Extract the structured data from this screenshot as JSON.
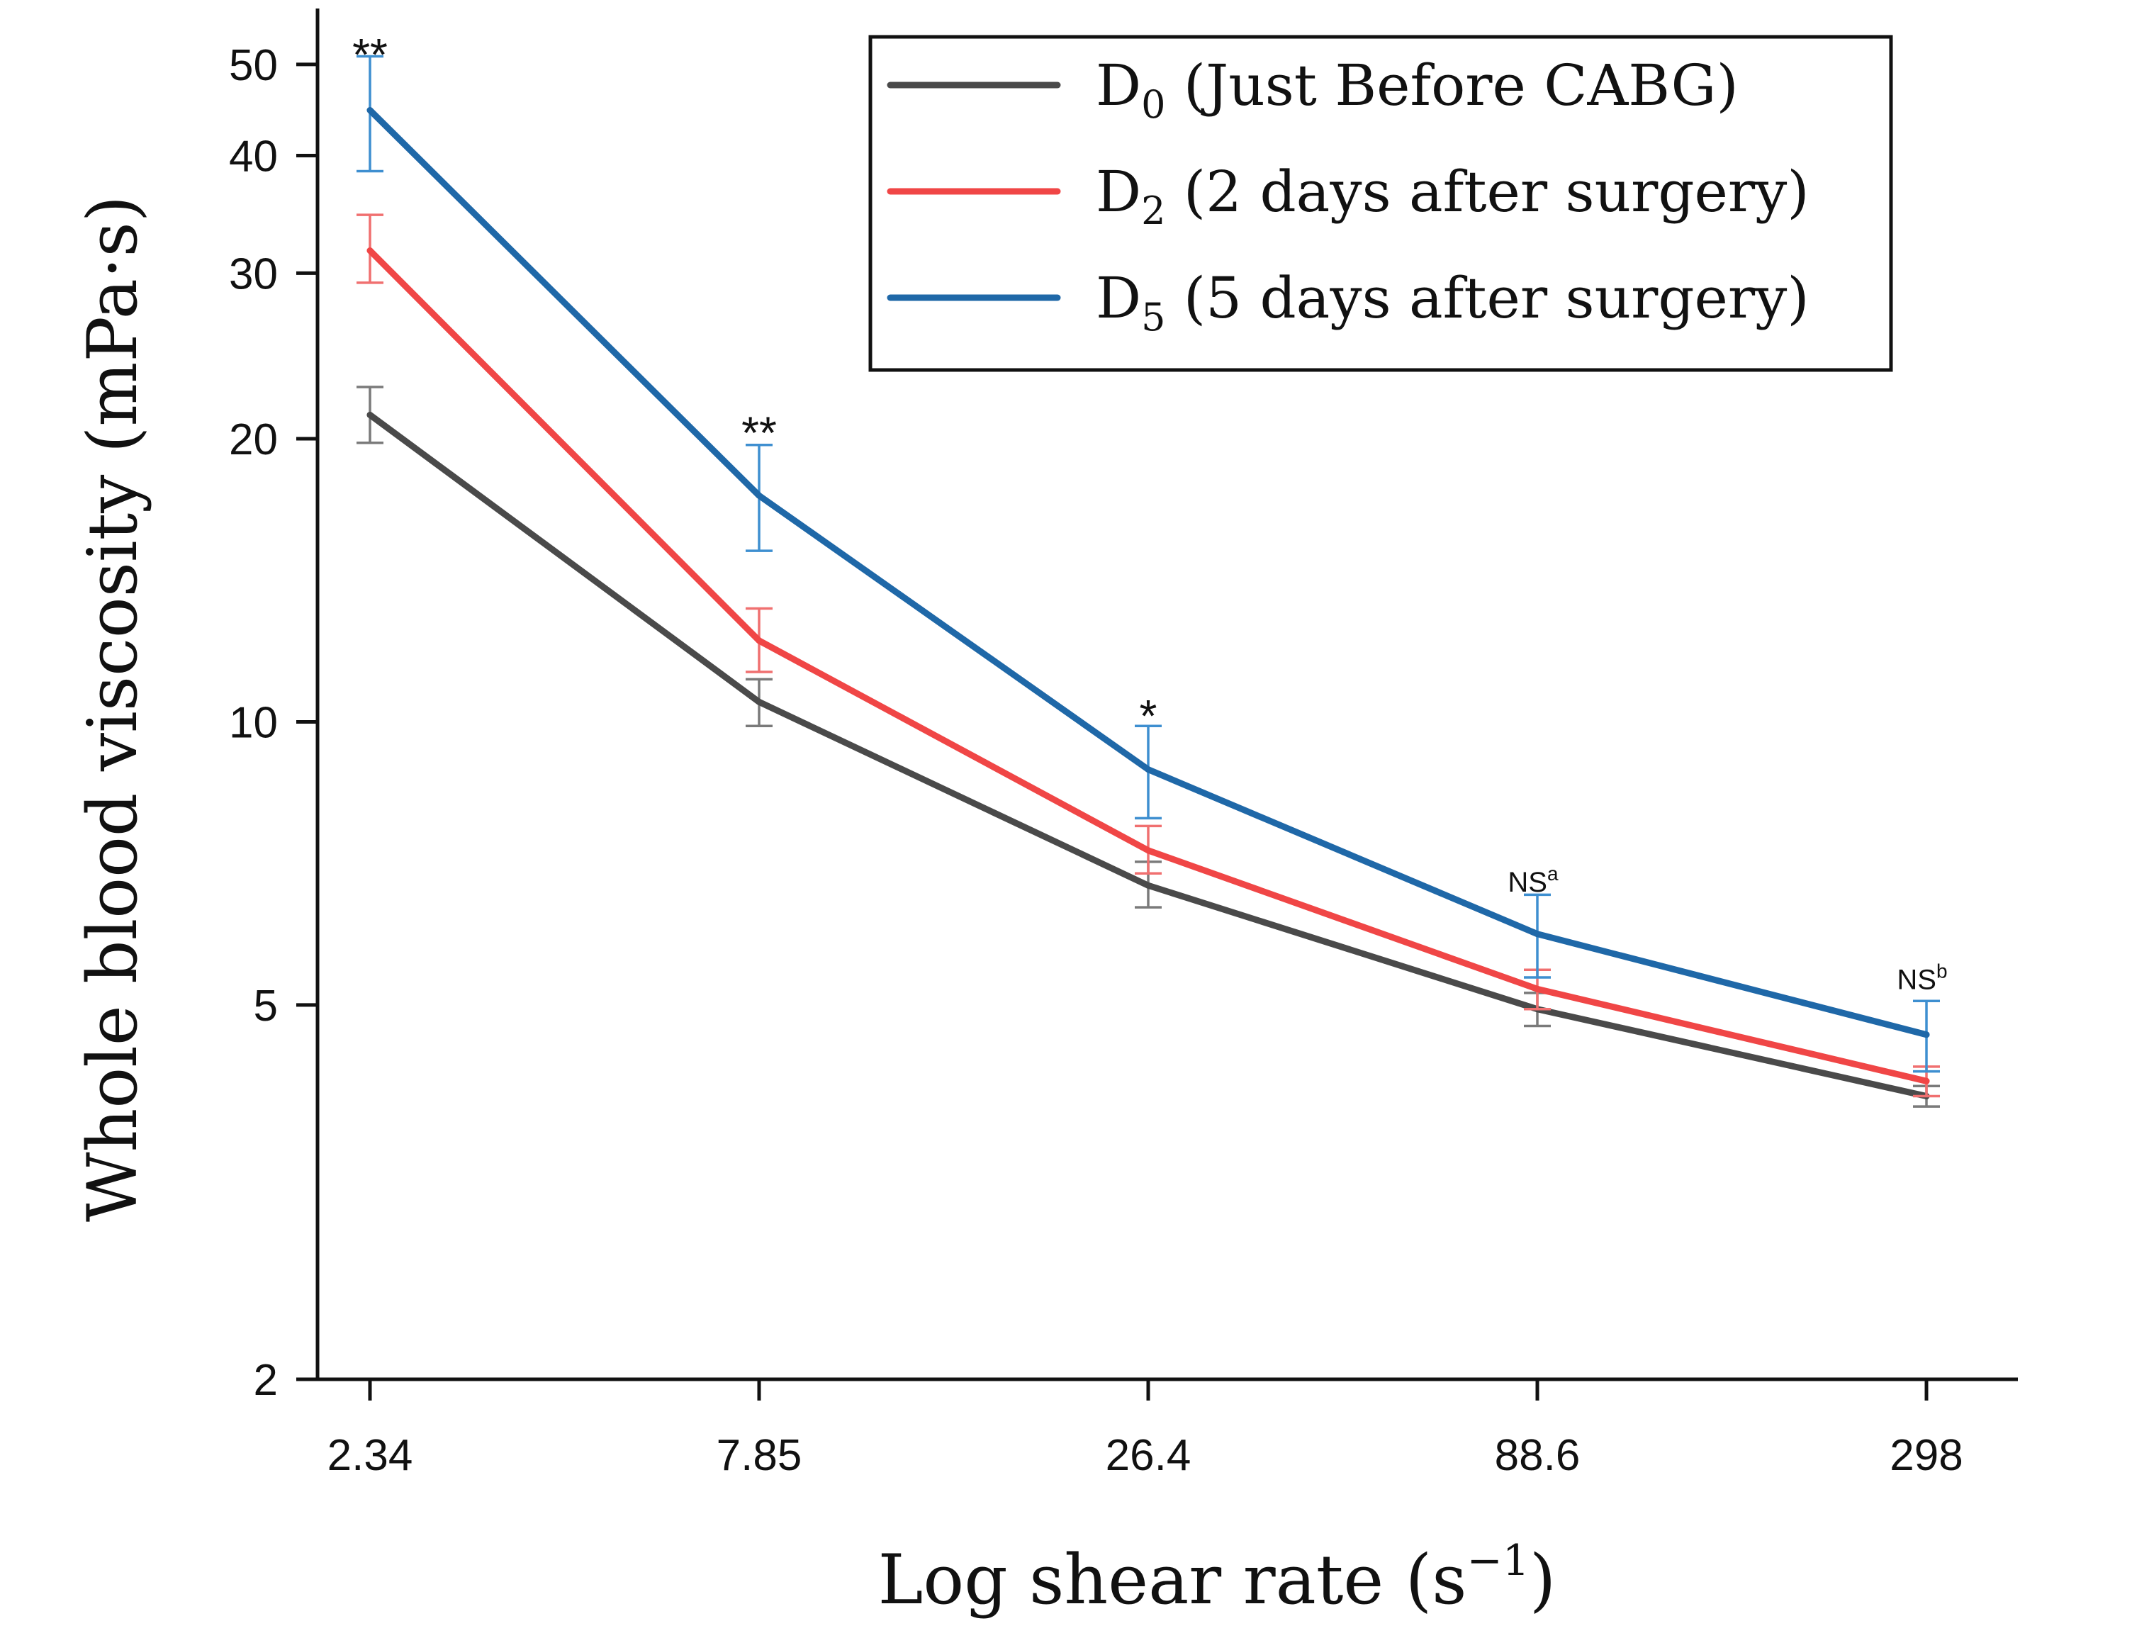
{
  "chart_data": {
    "type": "line",
    "title": "",
    "xlabel": {
      "text": "Log shear rate (s",
      "sup": "−1",
      "close": ")"
    },
    "ylabel": "Whole blood viscosity (mPa·s)",
    "yscale": "log",
    "ylim": [
      2,
      55
    ],
    "x": [
      "2.34",
      "7.85",
      "26.4",
      "88.6",
      "298"
    ],
    "yticks": [
      2,
      5,
      10,
      20,
      30,
      40,
      50
    ],
    "ytick_labels": [
      "2",
      "5",
      "10",
      "20",
      "30",
      "40",
      "50"
    ],
    "legend_position": "top-right",
    "series": [
      {
        "name": "D0 (Just Before CABG)",
        "legend_main": "D",
        "legend_sub": "0",
        "legend_rest": " (Just Before CABG)",
        "color": "#4a4a4a",
        "errcolor": "#7a7a7a",
        "values": [
          21.2,
          10.5,
          6.7,
          4.95,
          4.0
        ],
        "err_low": [
          1.4,
          0.6,
          0.35,
          0.2,
          0.1
        ],
        "err_high": [
          1.5,
          0.6,
          0.4,
          0.2,
          0.1
        ]
      },
      {
        "name": "D2 (2 days after surgery)",
        "legend_main": "D",
        "legend_sub": "2",
        "legend_rest": " (2 days after surgery)",
        "color": "#f04646",
        "errcolor": "#f07070",
        "values": [
          31.7,
          12.2,
          7.3,
          5.2,
          4.15
        ],
        "err_low": [
          2.4,
          0.9,
          0.4,
          0.25,
          0.15
        ],
        "err_high": [
          2.9,
          1.0,
          0.45,
          0.25,
          0.15
        ]
      },
      {
        "name": "D5 (5 days after surgery)",
        "legend_main": "D",
        "legend_sub": "5",
        "legend_rest": " (5 days after surgery)",
        "color": "#1f68a8",
        "errcolor": "#3e8fd0",
        "values": [
          44.7,
          17.4,
          8.9,
          5.95,
          4.65
        ],
        "err_low": [
          6.2,
          2.2,
          1.0,
          0.6,
          0.4
        ],
        "err_high": [
          6.3,
          2.3,
          1.0,
          0.6,
          0.4
        ]
      }
    ],
    "annotations": [
      {
        "text": "**",
        "sup": "",
        "style": "star",
        "x": "2.34",
        "y": 52.5
      },
      {
        "text": "**",
        "sup": "",
        "style": "star",
        "x": "7.85",
        "y": 20.8
      },
      {
        "text": "*",
        "sup": "",
        "style": "star",
        "x": "26.4",
        "y": 10.4
      },
      {
        "text": "NS",
        "sup": "a",
        "style": "ns",
        "x": "88.6",
        "y": 6.6
      },
      {
        "text": "NS",
        "sup": "b",
        "style": "ns",
        "x": "298",
        "y": 5.2
      }
    ]
  }
}
